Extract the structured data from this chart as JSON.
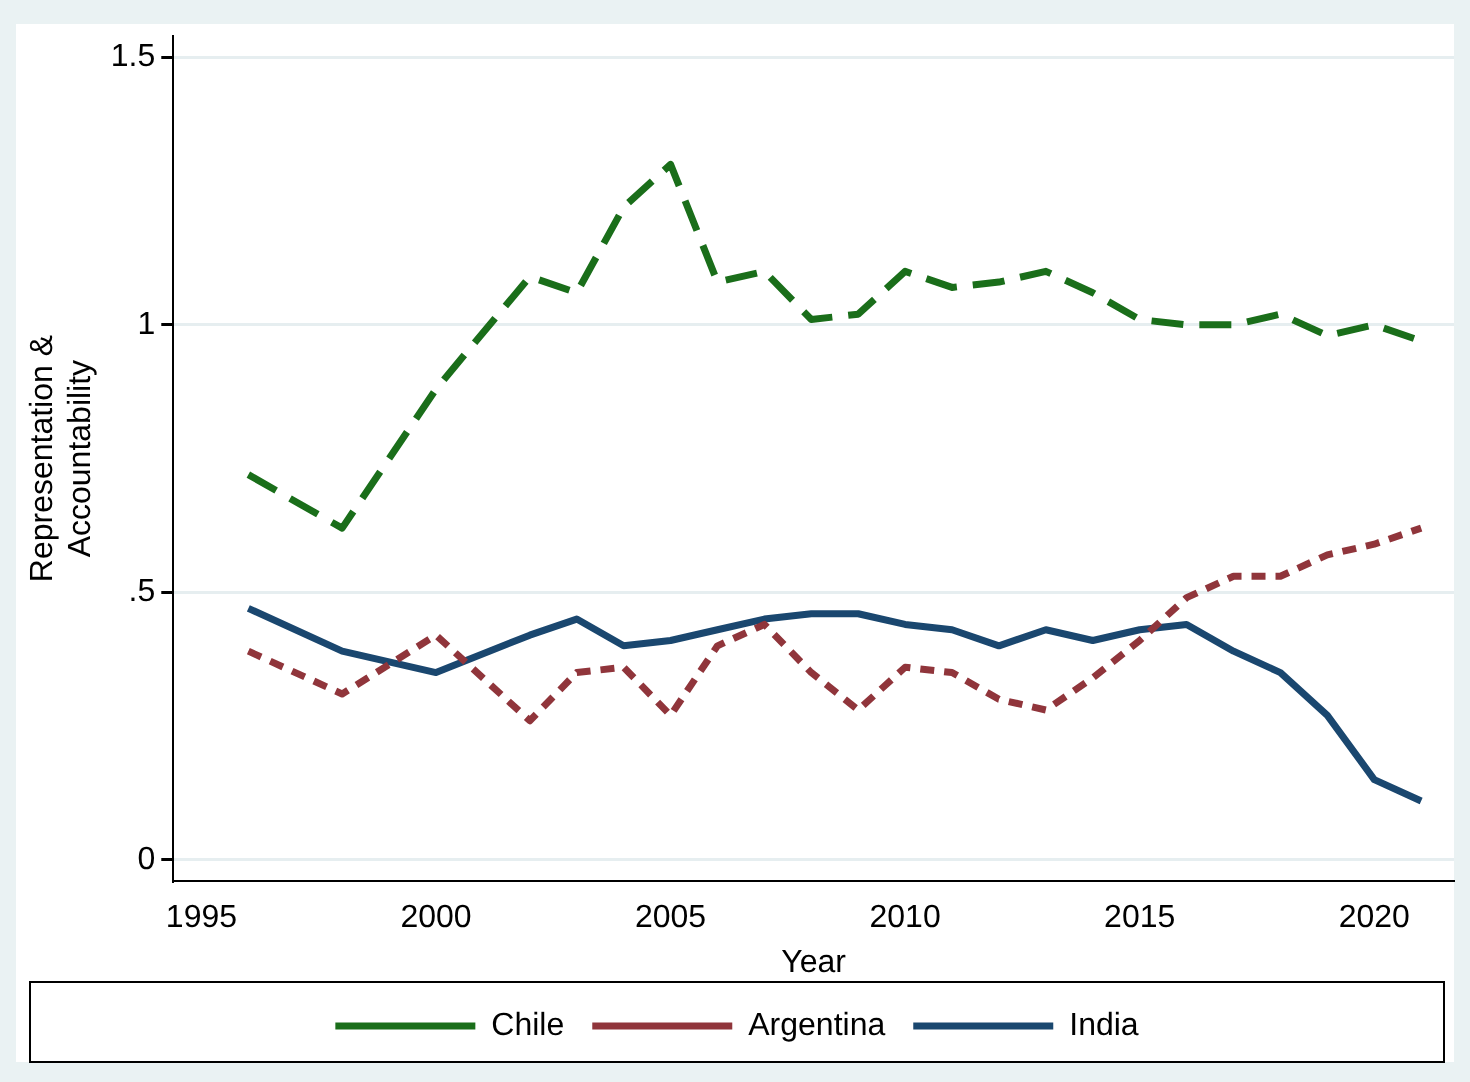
{
  "chart_data": {
    "type": "line",
    "xlabel": "Year",
    "ylabel": "Representation &\nAccountability",
    "x": [
      1996,
      1998,
      2000,
      2002,
      2003,
      2004,
      2005,
      2006,
      2007,
      2008,
      2009,
      2010,
      2011,
      2012,
      2013,
      2014,
      2015,
      2016,
      2017,
      2018,
      2019,
      2020,
      2021
    ],
    "series": [
      {
        "name": "Chile",
        "color": "#1a6e1a",
        "line_style": "dashed",
        "values": [
          0.72,
          0.62,
          0.88,
          1.09,
          1.06,
          1.22,
          1.3,
          1.08,
          1.1,
          1.01,
          1.02,
          1.1,
          1.07,
          1.08,
          1.1,
          1.06,
          1.01,
          1.0,
          1.0,
          1.02,
          0.98,
          1.0,
          0.97
        ]
      },
      {
        "name": "Argentina",
        "color": "#90353b",
        "line_style": "dotted",
        "values": [
          0.39,
          0.31,
          0.42,
          0.26,
          0.35,
          0.36,
          0.27,
          0.4,
          0.44,
          0.35,
          0.28,
          0.36,
          0.35,
          0.3,
          0.28,
          0.34,
          0.41,
          0.49,
          0.53,
          0.53,
          0.57,
          0.59,
          0.62
        ]
      },
      {
        "name": "India",
        "color": "#1a476f",
        "line_style": "solid",
        "values": [
          0.47,
          0.39,
          0.35,
          0.42,
          0.45,
          0.4,
          0.41,
          0.43,
          0.45,
          0.46,
          0.46,
          0.44,
          0.43,
          0.4,
          0.43,
          0.41,
          0.43,
          0.44,
          0.39,
          0.35,
          0.27,
          0.15,
          0.11
        ]
      }
    ],
    "xlim": [
      1994.4,
      2021.7
    ],
    "xticks": [
      1995,
      2000,
      2005,
      2010,
      2015,
      2020
    ],
    "ylim": [
      -0.04,
      1.54
    ],
    "yticks": [
      0,
      {
        "value": 0.5,
        "label": ".5"
      },
      1,
      1.5
    ],
    "grid": "y",
    "legend": "bottom",
    "marker": "none"
  }
}
